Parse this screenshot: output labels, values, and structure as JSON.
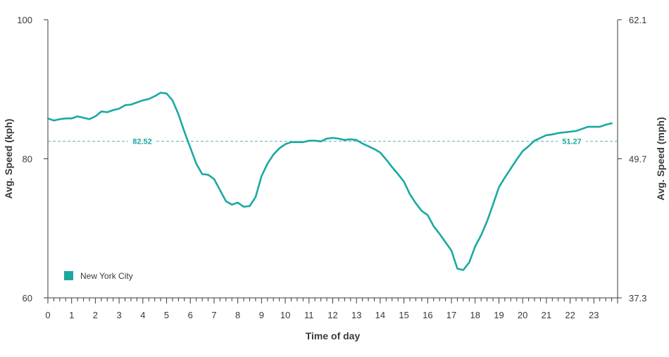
{
  "chart_data": {
    "type": "line",
    "xlabel": "Time of day",
    "ylabel_left": "Avg. Speed (kph)",
    "ylabel_right": "Avg. Speed (mph)",
    "xlim": [
      0,
      24
    ],
    "ylim": [
      60,
      100
    ],
    "ylim_right": [
      37.3,
      62.1
    ],
    "x_ticks": [
      0,
      1,
      2,
      3,
      4,
      5,
      6,
      7,
      8,
      9,
      10,
      11,
      12,
      13,
      14,
      15,
      16,
      17,
      18,
      19,
      20,
      21,
      22,
      23
    ],
    "y_ticks_left": [
      60,
      80,
      100
    ],
    "y_ticks_right": [
      "37.3",
      "49.7",
      "62.1"
    ],
    "grid": false,
    "legend_position": "bottom-left",
    "reference_line": {
      "value_kph": 82.52,
      "label_left": "82.52",
      "label_right": "51.27",
      "style": "dashed"
    },
    "series": [
      {
        "name": "New York City",
        "color": "#1aa9a2",
        "x": [
          0,
          0.25,
          0.5,
          0.75,
          1,
          1.25,
          1.5,
          1.75,
          2,
          2.25,
          2.5,
          2.75,
          3,
          3.25,
          3.5,
          3.75,
          4,
          4.25,
          4.5,
          4.75,
          5,
          5.25,
          5.5,
          5.75,
          6,
          6.25,
          6.5,
          6.75,
          7,
          7.25,
          7.5,
          7.75,
          8,
          8.25,
          8.5,
          8.75,
          9,
          9.25,
          9.5,
          9.75,
          10,
          10.25,
          10.5,
          10.75,
          11,
          11.25,
          11.5,
          11.75,
          12,
          12.25,
          12.5,
          12.75,
          13,
          13.25,
          13.5,
          13.75,
          14,
          14.25,
          14.5,
          14.75,
          15,
          15.25,
          15.5,
          15.75,
          16,
          16.25,
          16.5,
          16.75,
          17,
          17.25,
          17.5,
          17.75,
          18,
          18.25,
          18.5,
          18.75,
          19,
          19.25,
          19.5,
          19.75,
          20,
          20.25,
          20.5,
          20.75,
          21,
          21.25,
          21.5,
          21.75,
          22,
          22.25,
          22.5,
          22.75,
          23,
          23.25,
          23.5,
          23.75
        ],
        "values": [
          85.8,
          85.5,
          85.7,
          85.8,
          85.8,
          86.1,
          85.9,
          85.7,
          86.1,
          86.8,
          86.7,
          87.0,
          87.2,
          87.7,
          87.8,
          88.1,
          88.4,
          88.6,
          89.0,
          89.5,
          89.4,
          88.4,
          86.4,
          83.9,
          81.6,
          79.3,
          77.8,
          77.7,
          77.1,
          75.5,
          73.9,
          73.4,
          73.7,
          73.1,
          73.2,
          74.5,
          77.5,
          79.3,
          80.6,
          81.5,
          82.1,
          82.4,
          82.4,
          82.4,
          82.6,
          82.6,
          82.5,
          82.9,
          83.0,
          82.9,
          82.7,
          82.8,
          82.7,
          82.2,
          81.8,
          81.4,
          80.9,
          79.9,
          78.8,
          77.8,
          76.7,
          74.9,
          73.6,
          72.5,
          71.9,
          70.3,
          69.2,
          68.0,
          66.8,
          64.2,
          64.0,
          65.1,
          67.4,
          69.0,
          71.0,
          73.4,
          75.9,
          77.3,
          78.6,
          79.9,
          81.1,
          81.8,
          82.6,
          83.0,
          83.4,
          83.5,
          83.7,
          83.8,
          83.9,
          84.0,
          84.3,
          84.6,
          84.6,
          84.6,
          84.9,
          85.1
        ]
      }
    ]
  }
}
